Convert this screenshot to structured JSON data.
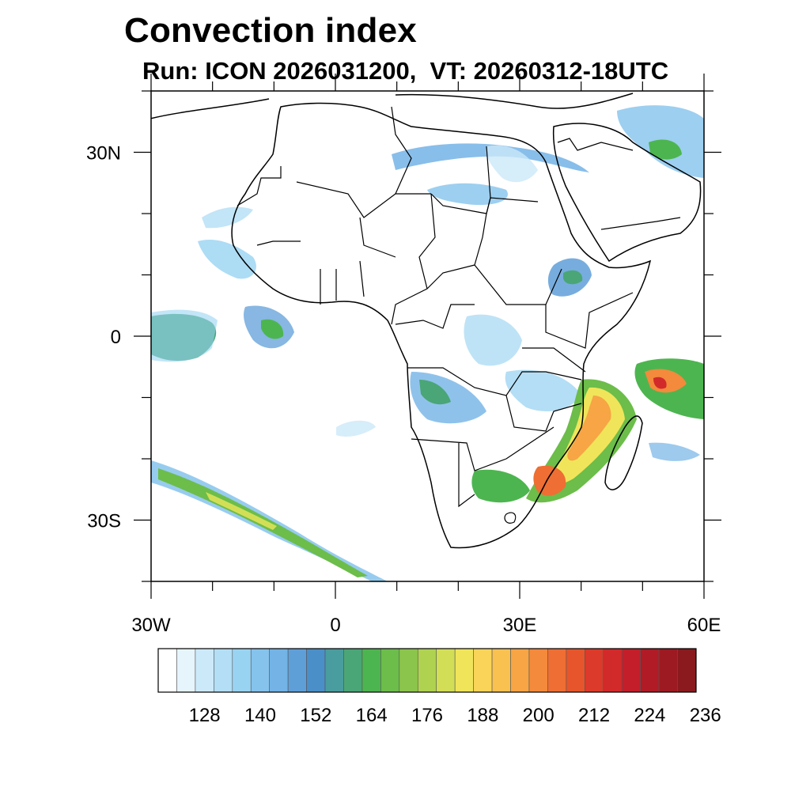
{
  "title": "Convection index",
  "subtitle": "Run: ICON 2026031200,  VT: 20260312-18UTC",
  "axes": {
    "lon_range": [
      -30,
      60
    ],
    "lat_range": [
      -40,
      40
    ],
    "x_ticks": [
      {
        "value": -30,
        "label": "30W"
      },
      {
        "value": 0,
        "label": "0"
      },
      {
        "value": 30,
        "label": "30E"
      },
      {
        "value": 60,
        "label": "60E"
      }
    ],
    "y_ticks": [
      {
        "value": 30,
        "label": "30N"
      },
      {
        "value": 0,
        "label": "0"
      },
      {
        "value": -30,
        "label": "30S"
      }
    ]
  },
  "colorbar": {
    "colors": [
      "#ffffff",
      "#e6f4fc",
      "#cce9f9",
      "#b3def5",
      "#99d3f2",
      "#85c3ec",
      "#73b3e6",
      "#5f9fd8",
      "#4a8fc7",
      "#4a9d9e",
      "#4aa676",
      "#4db54f",
      "#6cbd4a",
      "#8cc54c",
      "#afd250",
      "#d2df56",
      "#f0e55a",
      "#f9d458",
      "#f8c150",
      "#f7a545",
      "#f38a3c",
      "#ee6e33",
      "#e6552c",
      "#dc3a2a",
      "#d22a2a",
      "#c41e2a",
      "#b01b25",
      "#9d1a22",
      "#8a1a1e"
    ],
    "labels": [
      {
        "index": 3,
        "text": "128"
      },
      {
        "index": 6,
        "text": "140"
      },
      {
        "index": 9,
        "text": "152"
      },
      {
        "index": 12,
        "text": "164"
      },
      {
        "index": 15,
        "text": "176"
      },
      {
        "index": 18,
        "text": "188"
      },
      {
        "index": 21,
        "text": "200"
      },
      {
        "index": 24,
        "text": "212"
      },
      {
        "index": 27,
        "text": "224"
      },
      {
        "index": 30,
        "text": "236"
      }
    ]
  }
}
